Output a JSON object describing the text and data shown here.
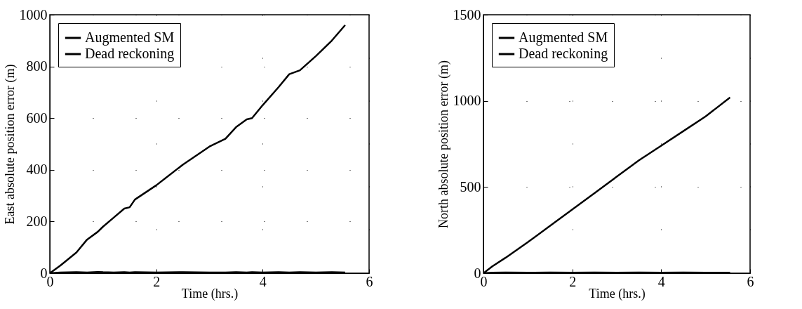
{
  "chart_data": [
    {
      "type": "line",
      "xlabel": "Time (hrs.)",
      "ylabel": "East absolute position error (m)",
      "x": [
        0,
        0.2,
        0.5,
        0.7,
        0.9,
        1,
        1.2,
        1.4,
        1.5,
        1.6,
        2,
        2.5,
        3,
        3.3,
        3.5,
        3.7,
        3.8,
        4,
        4.3,
        4.5,
        4.7,
        5,
        5.3,
        5.55
      ],
      "series": [
        {
          "name": "Augmented SM",
          "color": "#000000",
          "values": [
            0,
            3,
            4,
            3,
            5,
            4,
            3,
            4,
            3,
            4,
            3,
            4,
            3,
            3,
            4,
            3,
            4,
            3,
            4,
            3,
            4,
            3,
            4,
            3
          ]
        },
        {
          "name": "Dead reckoning",
          "color": "#000000",
          "values": [
            0,
            30,
            80,
            130,
            160,
            180,
            215,
            250,
            255,
            285,
            340,
            420,
            490,
            520,
            565,
            595,
            600,
            650,
            720,
            770,
            785,
            840,
            900,
            960
          ]
        }
      ],
      "xlim": [
        0,
        6
      ],
      "ylim": [
        0,
        1000
      ],
      "xticks": [
        0,
        2,
        4,
        6
      ],
      "yticks": [
        0,
        200,
        400,
        600,
        800,
        1000
      ],
      "grid": true,
      "legend": "top left",
      "line_style": "solid",
      "marker": "none"
    },
    {
      "type": "line",
      "xlabel": "Time (hrs.)",
      "ylabel": "North absolute position error (m)",
      "x": [
        0,
        0.2,
        0.5,
        1,
        1.5,
        2,
        2.5,
        3,
        3.5,
        4,
        4.5,
        5,
        5.55
      ],
      "series": [
        {
          "name": "Augmented SM",
          "color": "#000000",
          "values": [
            0,
            3,
            4,
            3,
            4,
            3,
            4,
            3,
            4,
            3,
            4,
            3,
            3
          ]
        },
        {
          "name": "Dead reckoning",
          "color": "#000000",
          "values": [
            0,
            40,
            90,
            180,
            275,
            370,
            465,
            560,
            655,
            740,
            825,
            910,
            1020
          ]
        }
      ],
      "xlim": [
        0,
        6
      ],
      "ylim": [
        0,
        1500
      ],
      "xticks": [
        0,
        2,
        4,
        6
      ],
      "yticks": [
        0,
        500,
        1000,
        1500
      ],
      "grid": true,
      "legend": "top left",
      "line_style": "solid",
      "marker": "none"
    }
  ]
}
